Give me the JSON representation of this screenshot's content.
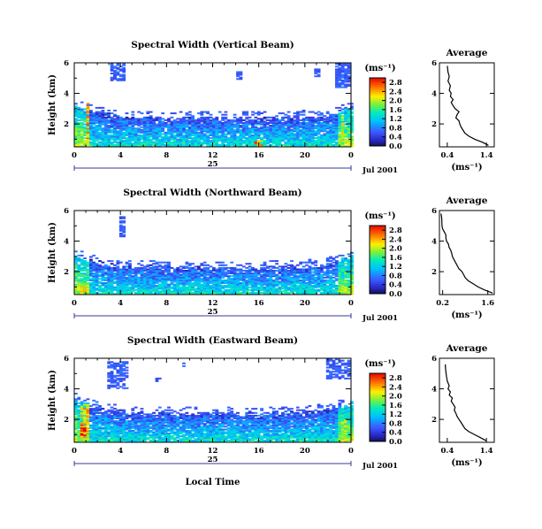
{
  "figure": {
    "xlabel": "Local Time",
    "day_label": "25",
    "date_label": "Jul 2001",
    "colorbar_unit": "(ms⁻¹)",
    "average_title": "Average",
    "average_unit": "(ms⁻¹)"
  },
  "chart_data": [
    {
      "type": "heatmap",
      "title": "Spectral Width (Vertical Beam)",
      "ylabel": "Height (km)",
      "xlabel": "",
      "x_ticks": [
        "0",
        "4",
        "8",
        "12",
        "16",
        "20",
        "0"
      ],
      "y_ticks": [
        "2",
        "4",
        "6"
      ],
      "xlim": [
        0,
        24
      ],
      "ylim": [
        0.5,
        6
      ],
      "colorbar": {
        "ticks": [
          "0.0",
          "0.4",
          "0.8",
          "1.2",
          "1.6",
          "2.0",
          "2.4",
          "2.8"
        ],
        "range": [
          0,
          3.0
        ]
      },
      "profile": {
        "x_ticks": [
          "0.4",
          "1.4"
        ],
        "xlim": [
          0.2,
          1.6
        ],
        "y_ticks": [
          "2",
          "4",
          "6"
        ],
        "ylim": [
          0.5,
          6
        ],
        "points": [
          [
            1.45,
            0.6
          ],
          [
            1.3,
            0.8
          ],
          [
            1.1,
            1.0
          ],
          [
            0.95,
            1.2
          ],
          [
            0.85,
            1.4
          ],
          [
            0.8,
            1.6
          ],
          [
            0.75,
            1.8
          ],
          [
            0.72,
            2.0
          ],
          [
            0.7,
            2.2
          ],
          [
            0.62,
            2.4
          ],
          [
            0.65,
            2.6
          ],
          [
            0.7,
            2.8
          ],
          [
            0.6,
            3.0
          ],
          [
            0.55,
            3.2
          ],
          [
            0.5,
            3.4
          ],
          [
            0.55,
            3.6
          ],
          [
            0.48,
            3.8
          ],
          [
            0.5,
            4.0
          ],
          [
            0.45,
            4.2
          ],
          [
            0.48,
            4.5
          ],
          [
            0.42,
            4.8
          ],
          [
            0.45,
            5.1
          ],
          [
            0.42,
            5.4
          ],
          [
            0.4,
            5.8
          ]
        ]
      },
      "fields": {
        "bg_top_start": [
          0,
          3.5
        ],
        "bg_top_mid": 2.2,
        "bg_top_end": [
          24,
          3.8
        ],
        "top_patches": [
          [
            3.0,
            4.2,
            4.8,
            5.9
          ],
          [
            14.0,
            14.4,
            4.9,
            5.4
          ],
          [
            20.8,
            21.3,
            5.0,
            5.6
          ],
          [
            22.6,
            23.8,
            4.3,
            5.9
          ]
        ],
        "layer_top": [
          [
            0,
            3.1
          ],
          [
            1.5,
            2.7
          ],
          [
            4,
            2.4
          ],
          [
            8,
            2.3
          ],
          [
            12,
            2.3
          ],
          [
            16,
            2.3
          ],
          [
            20,
            2.4
          ],
          [
            22,
            2.5
          ],
          [
            24,
            3.0
          ]
        ],
        "hot_spots": [
          [
            0.8,
            1.2,
            0.6,
            3.3,
            2.6
          ],
          [
            22.9,
            23.3,
            0.7,
            2.5,
            2.2
          ],
          [
            15.4,
            16.2,
            0.5,
            0.9,
            2.8
          ]
        ],
        "seed": 11
      }
    },
    {
      "type": "heatmap",
      "title": "Spectral Width (Northward Beam)",
      "ylabel": "Height (km)",
      "xlabel": "",
      "x_ticks": [
        "0",
        "4",
        "8",
        "12",
        "16",
        "20",
        "0"
      ],
      "y_ticks": [
        "2",
        "4",
        "6"
      ],
      "xlim": [
        0,
        24
      ],
      "ylim": [
        0.5,
        6
      ],
      "colorbar": {
        "ticks": [
          "0.0",
          "0.4",
          "0.8",
          "1.2",
          "1.6",
          "2.0",
          "2.4",
          "2.8"
        ],
        "range": [
          0,
          3.0
        ]
      },
      "profile": {
        "x_ticks": [
          "0.2",
          "1.6"
        ],
        "xlim": [
          0.1,
          1.8
        ],
        "y_ticks": [
          "2",
          "4",
          "6"
        ],
        "ylim": [
          0.5,
          6
        ],
        "points": [
          [
            1.75,
            0.6
          ],
          [
            1.5,
            0.8
          ],
          [
            1.3,
            1.0
          ],
          [
            1.15,
            1.2
          ],
          [
            1.0,
            1.4
          ],
          [
            0.9,
            1.6
          ],
          [
            0.85,
            1.8
          ],
          [
            0.8,
            2.0
          ],
          [
            0.7,
            2.2
          ],
          [
            0.65,
            2.4
          ],
          [
            0.6,
            2.6
          ],
          [
            0.55,
            2.8
          ],
          [
            0.5,
            3.0
          ],
          [
            0.48,
            3.2
          ],
          [
            0.45,
            3.4
          ],
          [
            0.4,
            3.6
          ],
          [
            0.38,
            3.8
          ],
          [
            0.32,
            4.0
          ],
          [
            0.3,
            4.2
          ],
          [
            0.3,
            4.4
          ],
          [
            0.25,
            4.6
          ],
          [
            0.2,
            4.8
          ],
          [
            0.18,
            5.0
          ],
          [
            0.17,
            5.5
          ],
          [
            0.15,
            5.8
          ]
        ]
      },
      "fields": {
        "bg_top_start": [
          0,
          3.2
        ],
        "bg_top_mid": 2.2,
        "bg_top_end": [
          24,
          3.6
        ],
        "top_patches": [
          [
            3.7,
            4.2,
            4.2,
            5.6
          ]
        ],
        "layer_top": [
          [
            0,
            3.0
          ],
          [
            1.5,
            2.6
          ],
          [
            4,
            2.3
          ],
          [
            8,
            2.2
          ],
          [
            12,
            2.2
          ],
          [
            16,
            2.2
          ],
          [
            20,
            2.3
          ],
          [
            22,
            2.5
          ],
          [
            24,
            3.0
          ]
        ],
        "hot_spots": [
          [
            0.4,
            1.2,
            0.5,
            1.1,
            2.3
          ],
          [
            23.0,
            23.6,
            0.5,
            1.3,
            2.0
          ]
        ],
        "seed": 29
      }
    },
    {
      "type": "heatmap",
      "title": "Spectral Width (Eastward Beam)",
      "ylabel": "Height (km)",
      "xlabel": "Local Time",
      "x_ticks": [
        "0",
        "4",
        "8",
        "12",
        "16",
        "20",
        "0"
      ],
      "y_ticks": [
        "2",
        "4",
        "6"
      ],
      "xlim": [
        0,
        24
      ],
      "ylim": [
        0.5,
        6
      ],
      "colorbar": {
        "ticks": [
          "0.0",
          "0.4",
          "0.8",
          "1.2",
          "1.6",
          "2.0",
          "2.4",
          "2.8"
        ],
        "range": [
          0,
          3.0
        ]
      },
      "profile": {
        "x_ticks": [
          "0.4",
          "1.4"
        ],
        "xlim": [
          0.2,
          1.6
        ],
        "y_ticks": [
          "2",
          "4",
          "6"
        ],
        "ylim": [
          0.5,
          6
        ],
        "points": [
          [
            1.4,
            0.6
          ],
          [
            1.25,
            0.8
          ],
          [
            1.1,
            1.0
          ],
          [
            0.95,
            1.2
          ],
          [
            0.85,
            1.4
          ],
          [
            0.8,
            1.6
          ],
          [
            0.75,
            1.8
          ],
          [
            0.7,
            2.0
          ],
          [
            0.65,
            2.2
          ],
          [
            0.62,
            2.4
          ],
          [
            0.58,
            2.6
          ],
          [
            0.6,
            2.8
          ],
          [
            0.55,
            3.0
          ],
          [
            0.5,
            3.2
          ],
          [
            0.53,
            3.4
          ],
          [
            0.45,
            3.6
          ],
          [
            0.48,
            3.8
          ],
          [
            0.42,
            4.0
          ],
          [
            0.45,
            4.2
          ],
          [
            0.4,
            4.5
          ],
          [
            0.38,
            4.8
          ],
          [
            0.36,
            5.2
          ],
          [
            0.35,
            5.6
          ]
        ]
      },
      "fields": {
        "bg_top_start": [
          0,
          3.5
        ],
        "bg_top_mid": 2.2,
        "bg_top_end": [
          24,
          3.8
        ],
        "top_patches": [
          [
            2.6,
            4.5,
            4.0,
            5.8
          ],
          [
            21.6,
            23.9,
            4.6,
            5.9
          ],
          [
            7.0,
            7.4,
            4.4,
            4.7
          ],
          [
            9.2,
            9.5,
            5.4,
            5.7
          ]
        ],
        "layer_top": [
          [
            0,
            3.2
          ],
          [
            1.5,
            2.8
          ],
          [
            4,
            2.4
          ],
          [
            8,
            2.3
          ],
          [
            12,
            2.3
          ],
          [
            16,
            2.3
          ],
          [
            20,
            2.4
          ],
          [
            22,
            2.6
          ],
          [
            24,
            3.0
          ]
        ],
        "hot_spots": [
          [
            0.5,
            1.2,
            0.6,
            3.0,
            2.5
          ],
          [
            0.3,
            0.8,
            0.8,
            1.6,
            3.0
          ],
          [
            23.0,
            23.6,
            0.6,
            2.0,
            2.2
          ]
        ],
        "seed": 47
      }
    }
  ]
}
